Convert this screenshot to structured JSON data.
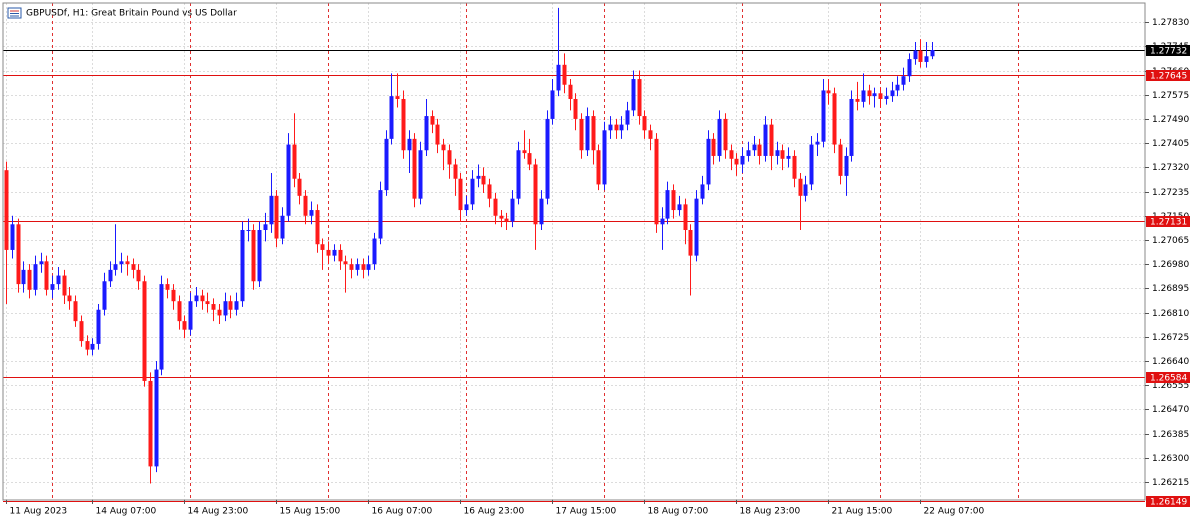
{
  "chart_data": {
    "type": "candlestick",
    "title": "GBPUSDf, H1:  Great Britain Pound vs US Dollar",
    "up_color": "#1a1aff",
    "down_color": "#ff1a1a",
    "grid": true,
    "ylim": [
      1.26152,
      1.27897
    ],
    "yticks": [
      {
        "value": 1.2783,
        "label": "1.27830"
      },
      1.27745,
      {
        "value": 1.2766,
        "label": "1.27660"
      },
      1.27575,
      {
        "value": 1.2749,
        "label": "1.27490"
      },
      1.27405,
      {
        "value": 1.2732,
        "label": "1.27320"
      },
      1.27235,
      {
        "value": 1.2715,
        "label": "1.27150"
      },
      1.27065,
      {
        "value": 1.2698,
        "label": "1.26980"
      },
      1.26895,
      {
        "value": 1.2681,
        "label": "1.26810"
      },
      1.26725,
      {
        "value": 1.2664,
        "label": "1.26640"
      },
      1.26555,
      {
        "value": 1.2647,
        "label": "1.26470"
      },
      1.26385,
      {
        "value": 1.263,
        "label": "1.26300"
      },
      1.26215
    ],
    "x_labels": [
      {
        "index": 0,
        "label": "11 Aug 2023"
      },
      {
        "index": 15,
        "label": "14 Aug 07:00"
      },
      {
        "index": 31,
        "label": "14 Aug 23:00"
      },
      {
        "index": 47,
        "label": "15 Aug 15:00"
      },
      {
        "index": 63,
        "label": "16 Aug 07:00"
      },
      {
        "index": 79,
        "label": "16 Aug 23:00"
      },
      {
        "index": 95,
        "label": "17 Aug 15:00"
      },
      {
        "index": 111,
        "label": "18 Aug 07:00"
      },
      {
        "index": 127,
        "label": "18 Aug 23:00"
      },
      {
        "index": 143,
        "label": "21 Aug 15:00"
      },
      {
        "index": 159,
        "label": "22 Aug 07:00"
      }
    ],
    "day_separators": [
      8,
      32,
      56,
      80,
      104,
      128,
      152,
      176
    ],
    "levels": [
      {
        "value": 1.27732,
        "color": "#000000"
      },
      {
        "value": 1.27645,
        "color": "#e01010"
      },
      {
        "value": 1.27131,
        "color": "#e01010"
      },
      {
        "value": 1.26584,
        "color": "#e01010"
      },
      {
        "value": 1.26149,
        "color": "#e01010"
      }
    ],
    "ohlc": [
      [
        1.2731,
        1.2734,
        1.2684,
        1.2703
      ],
      [
        1.2703,
        1.2715,
        1.27,
        1.2712
      ],
      [
        1.2712,
        1.2714,
        1.2688,
        1.2691
      ],
      [
        1.2691,
        1.2699,
        1.2688,
        1.2696
      ],
      [
        1.2696,
        1.2698,
        1.2686,
        1.2689
      ],
      [
        1.2689,
        1.2701,
        1.2687,
        1.2698
      ],
      [
        1.2698,
        1.2702,
        1.2695,
        1.2699
      ],
      [
        1.2699,
        1.2701,
        1.2687,
        1.2689
      ],
      [
        1.2689,
        1.2694,
        1.2686,
        1.2691
      ],
      [
        1.2691,
        1.2697,
        1.2689,
        1.2694
      ],
      [
        1.2694,
        1.2696,
        1.2684,
        1.2687
      ],
      [
        1.2687,
        1.269,
        1.2682,
        1.2685
      ],
      [
        1.2685,
        1.2687,
        1.2676,
        1.2678
      ],
      [
        1.2678,
        1.268,
        1.2669,
        1.2671
      ],
      [
        1.2671,
        1.2673,
        1.2666,
        1.2668
      ],
      [
        1.2668,
        1.2672,
        1.2666,
        1.267
      ],
      [
        1.267,
        1.2684,
        1.2668,
        1.2682
      ],
      [
        1.2682,
        1.2695,
        1.268,
        1.2692
      ],
      [
        1.2692,
        1.2699,
        1.269,
        1.2696
      ],
      [
        1.2696,
        1.2712,
        1.2694,
        1.2698
      ],
      [
        1.2698,
        1.2702,
        1.2695,
        1.2699
      ],
      [
        1.2699,
        1.2701,
        1.2694,
        1.2698
      ],
      [
        1.2698,
        1.27,
        1.2693,
        1.2696
      ],
      [
        1.2696,
        1.2698,
        1.2689,
        1.2692
      ],
      [
        1.2692,
        1.2694,
        1.2655,
        1.2657
      ],
      [
        1.2657,
        1.266,
        1.2621,
        1.2627
      ],
      [
        1.2627,
        1.2664,
        1.2625,
        1.2661
      ],
      [
        1.2661,
        1.2694,
        1.2659,
        1.2691
      ],
      [
        1.2691,
        1.2693,
        1.2686,
        1.2689
      ],
      [
        1.2689,
        1.2691,
        1.2682,
        1.2685
      ],
      [
        1.2685,
        1.2687,
        1.2675,
        1.2678
      ],
      [
        1.2678,
        1.268,
        1.2672,
        1.2675
      ],
      [
        1.2675,
        1.2688,
        1.2673,
        1.2685
      ],
      [
        1.2685,
        1.269,
        1.2683,
        1.2687
      ],
      [
        1.2687,
        1.2689,
        1.2682,
        1.2685
      ],
      [
        1.2685,
        1.2688,
        1.2681,
        1.2684
      ],
      [
        1.2684,
        1.2686,
        1.2678,
        1.2682
      ],
      [
        1.2682,
        1.2684,
        1.2677,
        1.268
      ],
      [
        1.268,
        1.2688,
        1.2678,
        1.2685
      ],
      [
        1.2685,
        1.2687,
        1.2679,
        1.2682
      ],
      [
        1.2682,
        1.2688,
        1.268,
        1.2685
      ],
      [
        1.2685,
        1.2713,
        1.2683,
        1.271
      ],
      [
        1.271,
        1.2714,
        1.2706,
        1.271
      ],
      [
        1.271,
        1.2712,
        1.2689,
        1.2692
      ],
      [
        1.2692,
        1.2713,
        1.269,
        1.271
      ],
      [
        1.271,
        1.2716,
        1.2706,
        1.2712
      ],
      [
        1.2712,
        1.273,
        1.2709,
        1.2722
      ],
      [
        1.2722,
        1.2724,
        1.2704,
        1.2707
      ],
      [
        1.2707,
        1.2718,
        1.2705,
        1.2715
      ],
      [
        1.2715,
        1.2744,
        1.2713,
        1.274
      ],
      [
        1.274,
        1.2751,
        1.2725,
        1.2728
      ],
      [
        1.2728,
        1.273,
        1.2719,
        1.2722
      ],
      [
        1.2722,
        1.2724,
        1.2712,
        1.2715
      ],
      [
        1.2715,
        1.272,
        1.2712,
        1.2717
      ],
      [
        1.2717,
        1.2719,
        1.2702,
        1.2705
      ],
      [
        1.2705,
        1.2707,
        1.2696,
        1.2703
      ],
      [
        1.2703,
        1.2706,
        1.2698,
        1.2701
      ],
      [
        1.2701,
        1.2705,
        1.2699,
        1.2703
      ],
      [
        1.2703,
        1.2705,
        1.2696,
        1.2699
      ],
      [
        1.2699,
        1.2701,
        1.2688,
        1.2698
      ],
      [
        1.2698,
        1.27,
        1.2693,
        1.2696
      ],
      [
        1.2696,
        1.27,
        1.2694,
        1.2698
      ],
      [
        1.2698,
        1.27,
        1.2693,
        1.2696
      ],
      [
        1.2696,
        1.2701,
        1.2694,
        1.2698
      ],
      [
        1.2698,
        1.2709,
        1.2696,
        1.2707
      ],
      [
        1.2707,
        1.2727,
        1.2705,
        1.2724
      ],
      [
        1.2724,
        1.2745,
        1.2722,
        1.2742
      ],
      [
        1.2742,
        1.2765,
        1.274,
        1.2757
      ],
      [
        1.2757,
        1.2765,
        1.2753,
        1.2756
      ],
      [
        1.2756,
        1.2759,
        1.2735,
        1.2738
      ],
      [
        1.2738,
        1.2745,
        1.273,
        1.2742
      ],
      [
        1.2742,
        1.2744,
        1.2718,
        1.2721
      ],
      [
        1.2721,
        1.2741,
        1.2719,
        1.2738
      ],
      [
        1.2738,
        1.2756,
        1.2736,
        1.275
      ],
      [
        1.275,
        1.2752,
        1.2744,
        1.2747
      ],
      [
        1.2747,
        1.2749,
        1.2737,
        1.274
      ],
      [
        1.274,
        1.2742,
        1.2731,
        1.2738
      ],
      [
        1.2738,
        1.274,
        1.2728,
        1.2733
      ],
      [
        1.2733,
        1.2735,
        1.2722,
        1.2728
      ],
      [
        1.2728,
        1.273,
        1.2713,
        1.2717
      ],
      [
        1.2717,
        1.2722,
        1.2715,
        1.2719
      ],
      [
        1.2719,
        1.2731,
        1.2717,
        1.2728
      ],
      [
        1.2728,
        1.2733,
        1.2725,
        1.2729
      ],
      [
        1.2729,
        1.2732,
        1.2723,
        1.2726
      ],
      [
        1.2726,
        1.2728,
        1.2718,
        1.2721
      ],
      [
        1.2721,
        1.2723,
        1.2712,
        1.2715
      ],
      [
        1.2715,
        1.2717,
        1.2711,
        1.2714
      ],
      [
        1.2714,
        1.2716,
        1.271,
        1.2713
      ],
      [
        1.2713,
        1.2724,
        1.2711,
        1.2721
      ],
      [
        1.2721,
        1.2741,
        1.2719,
        1.2738
      ],
      [
        1.2738,
        1.2745,
        1.2735,
        1.2737
      ],
      [
        1.2737,
        1.2742,
        1.2731,
        1.2733
      ],
      [
        1.2733,
        1.2735,
        1.2703,
        1.2712
      ],
      [
        1.2712,
        1.2724,
        1.271,
        1.2721
      ],
      [
        1.2721,
        1.2752,
        1.2719,
        1.2749
      ],
      [
        1.2749,
        1.2763,
        1.2747,
        1.2759
      ],
      [
        1.2759,
        1.2788,
        1.2757,
        1.2768
      ],
      [
        1.2768,
        1.2772,
        1.2758,
        1.2761
      ],
      [
        1.2761,
        1.2763,
        1.2752,
        1.2756
      ],
      [
        1.2756,
        1.2758,
        1.2745,
        1.2749
      ],
      [
        1.2749,
        1.2751,
        1.2735,
        1.2738
      ],
      [
        1.2738,
        1.2753,
        1.2736,
        1.275
      ],
      [
        1.275,
        1.2752,
        1.2733,
        1.2738
      ],
      [
        1.2738,
        1.274,
        1.2724,
        1.2726
      ],
      [
        1.2726,
        1.2748,
        1.2724,
        1.2745
      ],
      [
        1.2745,
        1.275,
        1.2742,
        1.2747
      ],
      [
        1.2747,
        1.2749,
        1.2742,
        1.2745
      ],
      [
        1.2745,
        1.275,
        1.2742,
        1.2747
      ],
      [
        1.2747,
        1.2755,
        1.2745,
        1.2752
      ],
      [
        1.2752,
        1.2766,
        1.275,
        1.2763
      ],
      [
        1.2763,
        1.2766,
        1.2747,
        1.275
      ],
      [
        1.275,
        1.2752,
        1.2742,
        1.2745
      ],
      [
        1.2745,
        1.2747,
        1.2738,
        1.2742
      ],
      [
        1.2742,
        1.2744,
        1.2709,
        1.2712
      ],
      [
        1.2712,
        1.2718,
        1.2703,
        1.2714
      ],
      [
        1.2714,
        1.2727,
        1.2712,
        1.2724
      ],
      [
        1.2724,
        1.2726,
        1.2714,
        1.2717
      ],
      [
        1.2717,
        1.2722,
        1.2715,
        1.2719
      ],
      [
        1.2719,
        1.2721,
        1.2705,
        1.271
      ],
      [
        1.271,
        1.2712,
        1.2687,
        1.2701
      ],
      [
        1.2701,
        1.2724,
        1.2699,
        1.2721
      ],
      [
        1.2721,
        1.2729,
        1.2719,
        1.2726
      ],
      [
        1.2726,
        1.2745,
        1.2724,
        1.2742
      ],
      [
        1.2742,
        1.2744,
        1.2733,
        1.2736
      ],
      [
        1.2736,
        1.2752,
        1.2734,
        1.2749
      ],
      [
        1.2749,
        1.2751,
        1.2735,
        1.2738
      ],
      [
        1.2738,
        1.274,
        1.2731,
        1.2735
      ],
      [
        1.2735,
        1.2737,
        1.2729,
        1.2733
      ],
      [
        1.2733,
        1.2739,
        1.273,
        1.2736
      ],
      [
        1.2736,
        1.2741,
        1.2734,
        1.2738
      ],
      [
        1.2738,
        1.2743,
        1.2736,
        1.274
      ],
      [
        1.274,
        1.2742,
        1.2733,
        1.2736
      ],
      [
        1.2736,
        1.275,
        1.2734,
        1.2747
      ],
      [
        1.2747,
        1.2749,
        1.2731,
        1.2736
      ],
      [
        1.2736,
        1.2741,
        1.2733,
        1.2738
      ],
      [
        1.2738,
        1.274,
        1.2731,
        1.2735
      ],
      [
        1.2735,
        1.2739,
        1.2732,
        1.2736
      ],
      [
        1.2736,
        1.2738,
        1.2725,
        1.2728
      ],
      [
        1.2728,
        1.273,
        1.271,
        1.2722
      ],
      [
        1.2722,
        1.2729,
        1.272,
        1.2726
      ],
      [
        1.2726,
        1.2743,
        1.2724,
        1.274
      ],
      [
        1.274,
        1.2744,
        1.2736,
        1.2741
      ],
      [
        1.2741,
        1.2763,
        1.2739,
        1.2759
      ],
      [
        1.2759,
        1.2763,
        1.2754,
        1.2758
      ],
      [
        1.2758,
        1.276,
        1.2737,
        1.274
      ],
      [
        1.274,
        1.2742,
        1.2726,
        1.2729
      ],
      [
        1.2729,
        1.2739,
        1.2722,
        1.2736
      ],
      [
        1.2736,
        1.2759,
        1.2734,
        1.2756
      ],
      [
        1.2756,
        1.2762,
        1.2752,
        1.2755
      ],
      [
        1.2755,
        1.2765,
        1.2753,
        1.2759
      ],
      [
        1.2759,
        1.2761,
        1.2754,
        1.2757
      ],
      [
        1.2757,
        1.276,
        1.2753,
        1.2758
      ],
      [
        1.2758,
        1.276,
        1.2753,
        1.2756
      ],
      [
        1.2756,
        1.276,
        1.2754,
        1.2757
      ],
      [
        1.2757,
        1.2762,
        1.2755,
        1.2759
      ],
      [
        1.2759,
        1.2764,
        1.2757,
        1.2761
      ],
      [
        1.2761,
        1.2767,
        1.2759,
        1.2764
      ],
      [
        1.2764,
        1.2772,
        1.2762,
        1.277
      ],
      [
        1.277,
        1.2776,
        1.2768,
        1.2773
      ],
      [
        1.2773,
        1.2777,
        1.2767,
        1.2769
      ],
      [
        1.2769,
        1.2776,
        1.2767,
        1.2771
      ],
      [
        1.2771,
        1.2776,
        1.277,
        1.27732
      ]
    ]
  }
}
